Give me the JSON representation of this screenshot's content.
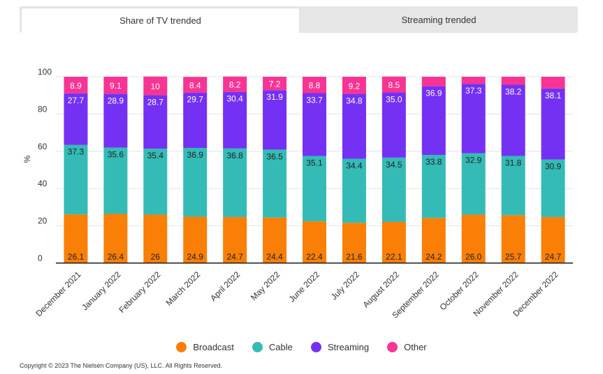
{
  "tabs": [
    {
      "label": "Share of TV trended",
      "active": true
    },
    {
      "label": "Streaming trended",
      "active": false
    }
  ],
  "copyright": "Copyright © 2023 The Nielsen Company (US), LLC. All Rights Reserved.",
  "chart_data": {
    "type": "bar",
    "stacked": true,
    "ylabel": "%",
    "ylim": [
      0,
      100
    ],
    "yticks": [
      0,
      20,
      40,
      60,
      80,
      100
    ],
    "grid": true,
    "legend_placement": "bottom",
    "categories": [
      "December 2021",
      "January 2022",
      "February 2022",
      "March 2022",
      "April 2022",
      "May 2022",
      "June 2022",
      "July 2022",
      "August 2022",
      "September 2022",
      "October 2022",
      "November 2022",
      "December 2022"
    ],
    "series": [
      {
        "name": "Broadcast",
        "color": "#f97f07",
        "values": [
          26.1,
          26.4,
          26,
          24.9,
          24.7,
          24.4,
          22.4,
          21.6,
          22.1,
          24.2,
          26.0,
          25.7,
          24.7
        ],
        "labels": [
          "26.1",
          "26.4",
          "26",
          "24.9",
          "24.7",
          "24.4",
          "22.4",
          "21.6",
          "22.1",
          "24.2",
          "26.0",
          "25.7",
          "24.7"
        ]
      },
      {
        "name": "Cable",
        "color": "#34bbb6",
        "values": [
          37.3,
          35.6,
          35.4,
          36.9,
          36.8,
          36.5,
          35.1,
          34.4,
          34.5,
          33.8,
          32.9,
          31.8,
          30.9
        ],
        "labels": [
          "37.3",
          "35.6",
          "35.4",
          "36.9",
          "36.8",
          "36.5",
          "35.1",
          "34.4",
          "34.5",
          "33.8",
          "32.9",
          "31.8",
          "30.9"
        ]
      },
      {
        "name": "Streaming",
        "color": "#7431f4",
        "values": [
          27.7,
          28.9,
          28.7,
          29.7,
          30.4,
          31.9,
          33.7,
          34.8,
          35.0,
          36.9,
          37.3,
          38.2,
          38.1
        ],
        "labels": [
          "27.7",
          "28.9",
          "28.7",
          "29.7",
          "30.4",
          "31.9",
          "33.7",
          "34.8",
          "35.0",
          "36.9",
          "37.3",
          "38.2",
          "38.1"
        ]
      },
      {
        "name": "Other",
        "color": "#f73493",
        "values": [
          8.9,
          9.1,
          10,
          8.4,
          8.2,
          7.2,
          8.8,
          9.2,
          8.5,
          5.1,
          3.8,
          4.3,
          6.3
        ],
        "labels": [
          "8.9",
          "9.1",
          "10",
          "8.4",
          "8.2",
          "7.2",
          "8.8",
          "9.2",
          "8.5",
          "",
          "",
          "",
          ""
        ]
      }
    ]
  }
}
